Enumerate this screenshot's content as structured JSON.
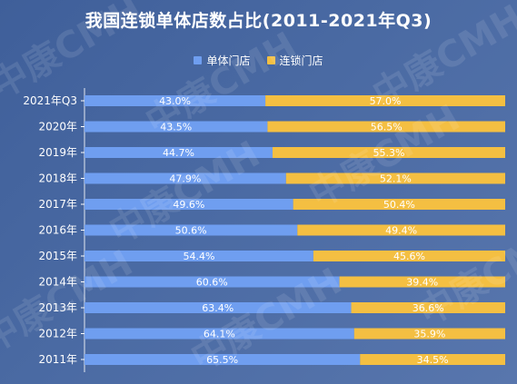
{
  "watermark": "中康CMH",
  "chart_data": {
    "type": "bar",
    "orientation": "horizontal",
    "stacked": true,
    "normalized_percent": true,
    "title": "我国连锁单体店数占比(2011-2021年Q3)",
    "legend": {
      "position": "top",
      "items": [
        "单体门店",
        "连锁门店"
      ]
    },
    "categories": [
      "2021年Q3",
      "2020年",
      "2019年",
      "2018年",
      "2017年",
      "2016年",
      "2015年",
      "2014年",
      "2013年",
      "2012年",
      "2011年"
    ],
    "series": [
      {
        "name": "单体门店",
        "color": "#6f9ef0",
        "values": [
          43.0,
          43.5,
          44.7,
          47.9,
          49.6,
          50.6,
          54.4,
          60.6,
          63.4,
          64.1,
          65.5
        ],
        "labels": [
          "43.0%",
          "43.5%",
          "44.7%",
          "47.9%",
          "49.6%",
          "50.6%",
          "54.4%",
          "60.6%",
          "63.4%",
          "64.1%",
          "65.5%"
        ]
      },
      {
        "name": "连锁门店",
        "color": "#f4bf42",
        "values": [
          57.0,
          56.5,
          55.3,
          52.1,
          50.4,
          49.4,
          45.6,
          39.4,
          36.6,
          35.9,
          34.5
        ],
        "labels": [
          "57.0%",
          "56.5%",
          "55.3%",
          "52.1%",
          "50.4%",
          "49.4%",
          "45.6%",
          "39.4%",
          "36.6%",
          "35.9%",
          "34.5%"
        ]
      }
    ],
    "xlim": [
      0,
      100
    ],
    "grid": false,
    "data_labels": "inside-center"
  }
}
